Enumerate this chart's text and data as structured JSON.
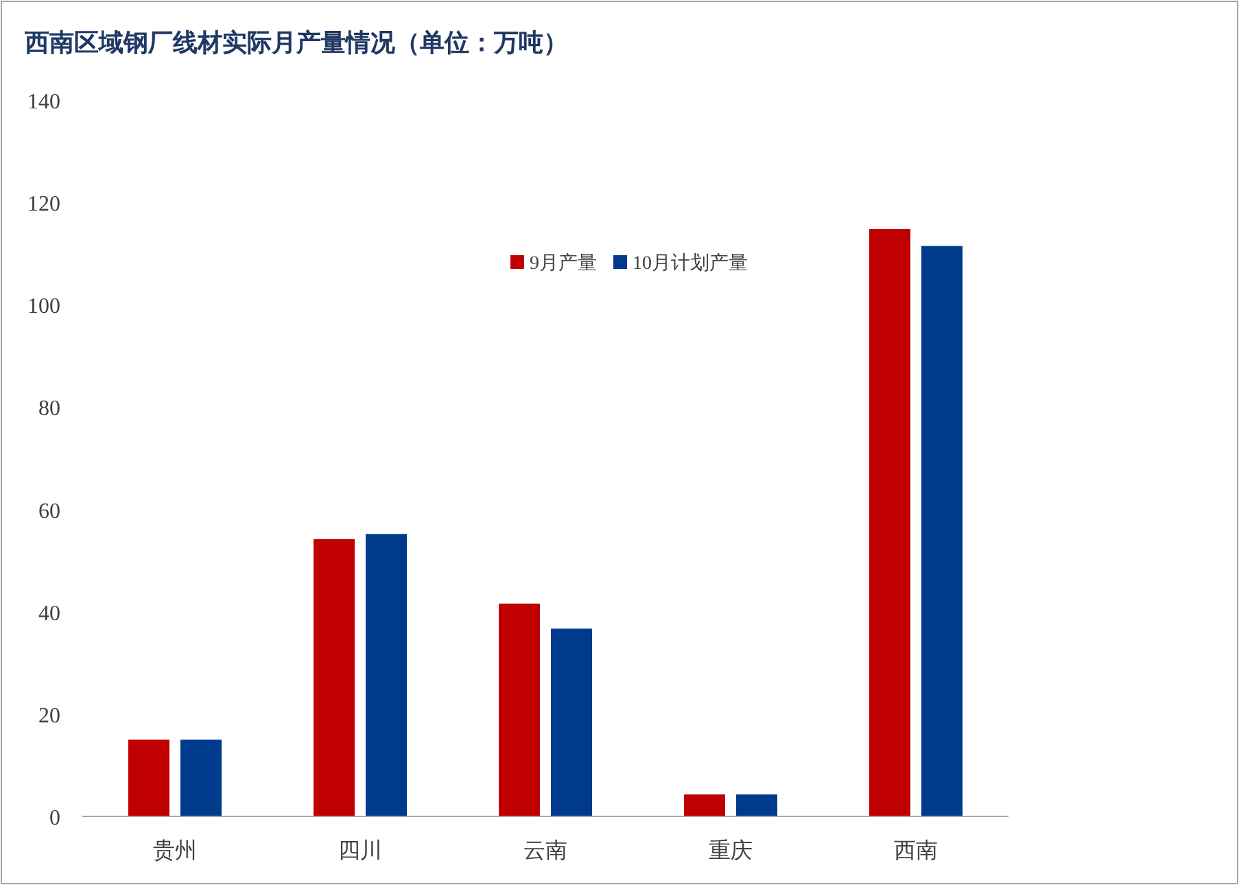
{
  "chart_data": {
    "type": "bar",
    "title": "西南区域钢厂线材实际月产量情况（单位：万吨）",
    "categories": [
      "贵州",
      "四川",
      "云南",
      "重庆",
      "西南"
    ],
    "series": [
      {
        "name": "9月产量",
        "color": "#c00000",
        "values": [
          15.0,
          54.2,
          41.6,
          4.3,
          114.8
        ]
      },
      {
        "name": "10月计划产量",
        "color": "#003a8c",
        "values": [
          15.0,
          55.2,
          36.7,
          4.3,
          111.5
        ]
      }
    ],
    "ylim": [
      0,
      140
    ],
    "yticks": [
      0,
      20,
      40,
      60,
      80,
      100,
      120,
      140
    ],
    "legend": "top"
  }
}
